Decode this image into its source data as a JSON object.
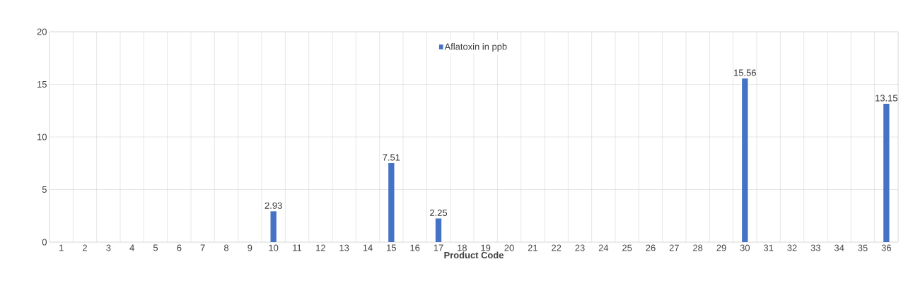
{
  "chart_data": {
    "type": "bar",
    "xlabel": "Product Code",
    "categories": [
      "1",
      "2",
      "3",
      "4",
      "5",
      "6",
      "7",
      "8",
      "9",
      "10",
      "11",
      "12",
      "13",
      "14",
      "15",
      "16",
      "17",
      "18",
      "19",
      "20",
      "21",
      "22",
      "23",
      "24",
      "25",
      "26",
      "27",
      "28",
      "29",
      "30",
      "31",
      "32",
      "33",
      "34",
      "35",
      "36"
    ],
    "series": [
      {
        "name": "Aflatoxin in ppb",
        "color": "#4472c4",
        "values": [
          null,
          null,
          null,
          null,
          null,
          null,
          null,
          null,
          null,
          2.93,
          null,
          null,
          null,
          null,
          7.51,
          null,
          2.25,
          null,
          null,
          null,
          null,
          null,
          null,
          null,
          null,
          null,
          null,
          null,
          null,
          15.56,
          null,
          null,
          null,
          null,
          null,
          13.15
        ]
      }
    ],
    "ylim": [
      0,
      20
    ],
    "yticks": [
      0,
      5,
      10,
      15,
      20
    ],
    "grid": true,
    "legend": "top",
    "data_labels": true
  }
}
